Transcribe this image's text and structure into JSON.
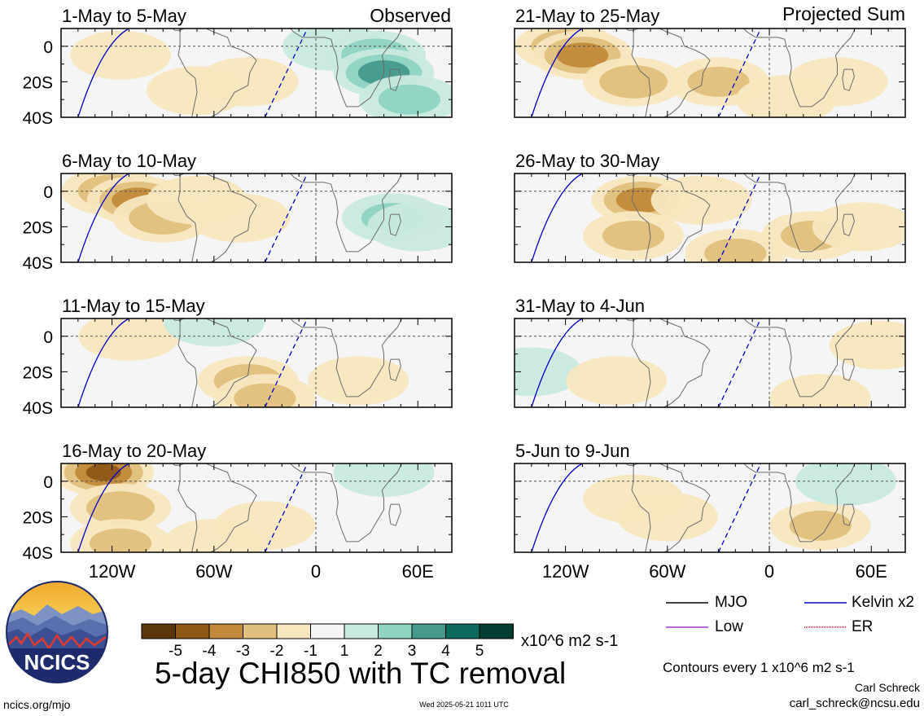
{
  "panel_labels": {
    "observed": "Observed",
    "projected": "Projected Sum"
  },
  "colorbar": {
    "colors": [
      "#5b3609",
      "#8e5716",
      "#c28a3a",
      "#e0c07c",
      "#f7e7bf",
      "#f5f5f5",
      "#c9eade",
      "#8fd4c2",
      "#459a8d",
      "#0d6a5c",
      "#023d31"
    ],
    "tick_labels": [
      "-5",
      "-4",
      "-3",
      "-2",
      "-1",
      "1",
      "2",
      "3",
      "4",
      "5"
    ],
    "units": "x10^6 m2 s-1"
  },
  "legend": {
    "items": [
      {
        "label": "MJO",
        "color": "#000000"
      },
      {
        "label": "Kelvin x2",
        "color": "#0000cc"
      },
      {
        "label": "Low",
        "color": "#a030d0"
      },
      {
        "label": "ER",
        "color": "#e02020"
      }
    ]
  },
  "title": "5-day CHI850 with TC removal",
  "contour_note": "Contours every 1 x10^6 m2 s-1",
  "author": "Carl Schreck",
  "email": "carl_schreck@ncsu.edu",
  "site": "ncics.org/mjo",
  "timestamp": "Wed 2025-05-21 1011 UTC",
  "logo_text": "NCICS",
  "chart_data": {
    "type": "heatmap",
    "title": "5-day CHI850 with TC removal",
    "variable": "CHI850 anomaly",
    "units": "x10^6 m2 s-1",
    "lat_ticks": [
      "0",
      "20S",
      "40S"
    ],
    "lon_ticks": [
      "120W",
      "60W",
      "0",
      "60E"
    ],
    "ylim": [
      -40,
      10
    ],
    "xlim": [
      -150,
      80
    ],
    "color_levels": [
      -5,
      -4,
      -3,
      -2,
      -1,
      1,
      2,
      3,
      4,
      5
    ],
    "panels": [
      {
        "title": "1-May to 5-May",
        "group": "Observed",
        "anomalies": [
          {
            "lon": -115,
            "lat": -5,
            "value": -1.5
          },
          {
            "lon": -70,
            "lat": -25,
            "value": -1.2
          },
          {
            "lon": -40,
            "lat": -20,
            "value": -1.0
          },
          {
            "lon": 10,
            "lat": 0,
            "value": 1.2
          },
          {
            "lon": 35,
            "lat": -5,
            "value": 2.5
          },
          {
            "lon": 40,
            "lat": -15,
            "value": 3.5
          },
          {
            "lon": 55,
            "lat": -30,
            "value": 2.0
          }
        ]
      },
      {
        "title": "6-May to 10-May",
        "group": "Observed",
        "anomalies": [
          {
            "lon": -120,
            "lat": 0,
            "value": -2.5
          },
          {
            "lon": -105,
            "lat": -5,
            "value": -3.5
          },
          {
            "lon": -90,
            "lat": -15,
            "value": -2.5
          },
          {
            "lon": -70,
            "lat": -5,
            "value": -1.8
          },
          {
            "lon": -45,
            "lat": -15,
            "value": -1.2
          },
          {
            "lon": 45,
            "lat": -15,
            "value": 2.0
          },
          {
            "lon": 60,
            "lat": -20,
            "value": 1.5
          }
        ]
      },
      {
        "title": "11-May to 15-May",
        "group": "Observed",
        "anomalies": [
          {
            "lon": -110,
            "lat": 0,
            "value": -1.0
          },
          {
            "lon": -40,
            "lat": -25,
            "value": -2.5
          },
          {
            "lon": -30,
            "lat": -35,
            "value": -2.0
          },
          {
            "lon": 25,
            "lat": -25,
            "value": -1.5
          },
          {
            "lon": -60,
            "lat": 8,
            "value": 1.2
          }
        ]
      },
      {
        "title": "16-May to 20-May",
        "group": "Observed",
        "anomalies": [
          {
            "lon": -125,
            "lat": 5,
            "value": -4.0
          },
          {
            "lon": -115,
            "lat": -15,
            "value": -2.5
          },
          {
            "lon": -115,
            "lat": -35,
            "value": -2.0
          },
          {
            "lon": -30,
            "lat": -25,
            "value": -1.8
          },
          {
            "lon": -60,
            "lat": -35,
            "value": -1.2
          },
          {
            "lon": 40,
            "lat": 5,
            "value": 1.2
          }
        ]
      },
      {
        "title": "21-May to 25-May",
        "group": "Projected Sum",
        "anomalies": [
          {
            "lon": -120,
            "lat": 0,
            "value": -2.5
          },
          {
            "lon": -110,
            "lat": -5,
            "value": -3.5
          },
          {
            "lon": -80,
            "lat": -20,
            "value": -2.5
          },
          {
            "lon": -30,
            "lat": -20,
            "value": -2.0
          },
          {
            "lon": 10,
            "lat": -30,
            "value": -1.5
          },
          {
            "lon": 40,
            "lat": -20,
            "value": -1.2
          }
        ]
      },
      {
        "title": "26-May to 30-May",
        "group": "Projected Sum",
        "anomalies": [
          {
            "lon": -75,
            "lat": -5,
            "value": -3.5
          },
          {
            "lon": -80,
            "lat": -25,
            "value": -2.0
          },
          {
            "lon": -40,
            "lat": -5,
            "value": -1.5
          },
          {
            "lon": -20,
            "lat": -35,
            "value": -2.0
          },
          {
            "lon": 25,
            "lat": -25,
            "value": -2.0
          },
          {
            "lon": 55,
            "lat": -20,
            "value": -1.2
          }
        ]
      },
      {
        "title": "31-May to 4-Jun",
        "group": "Projected Sum",
        "anomalies": [
          {
            "lon": -140,
            "lat": -20,
            "value": 1.0
          },
          {
            "lon": -90,
            "lat": -25,
            "value": -1.0
          },
          {
            "lon": 30,
            "lat": -35,
            "value": -1.5
          },
          {
            "lon": 65,
            "lat": -5,
            "value": -1.2
          }
        ]
      },
      {
        "title": "5-Jun to 9-Jun",
        "group": "Projected Sum",
        "anomalies": [
          {
            "lon": -80,
            "lat": -10,
            "value": -1.5
          },
          {
            "lon": -60,
            "lat": -20,
            "value": -1.2
          },
          {
            "lon": 30,
            "lat": -25,
            "value": -2.0
          },
          {
            "lon": 45,
            "lat": 0,
            "value": 1.0
          }
        ]
      }
    ]
  }
}
